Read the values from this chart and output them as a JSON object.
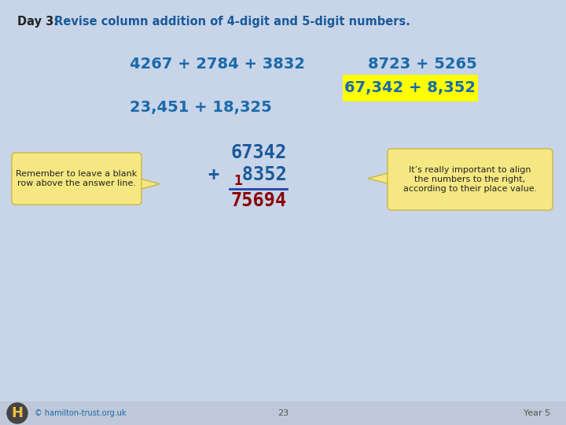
{
  "bg_color": "#c8d4e8",
  "footer_bg": "#bec8d8",
  "title_bold": "Day 3:",
  "title_normal": " Revise column addition of 4-digit and 5-digit numbers.",
  "title_color_bold": "#222222",
  "title_color_normal": "#1a5a9a",
  "expr1": "4267 + 2784 + 3832",
  "expr2": "8723 + 5265",
  "expr3": "23,451 + 18,325",
  "expr4": "67,342 + 8,352",
  "expr_color": "#1a6aaa",
  "expr4_bg": "#ffff00",
  "col_num1": "67342",
  "col_num2": "+  8352",
  "col_carry": "1",
  "col_result": "75694",
  "col_num_color": "#1a5a9a",
  "col_result_color": "#8b0000",
  "col_carry_color": "#8b0000",
  "bubble_left_text": "Remember to leave a blank\nrow above the answer line.",
  "bubble_right_text": "It’s really important to align\nthe numbers to the right,\naccording to their place value.",
  "bubble_bg": "#f5e882",
  "bubble_border": "#c8b840",
  "footer_copyright": "© hamilton-trust.org.uk",
  "footer_page": "23",
  "footer_year": "Year 5",
  "footer_link_color": "#1a6aaa",
  "footer_text_color": "#555555",
  "H_circle_color": "#444444",
  "H_text_color": "#f0c040"
}
